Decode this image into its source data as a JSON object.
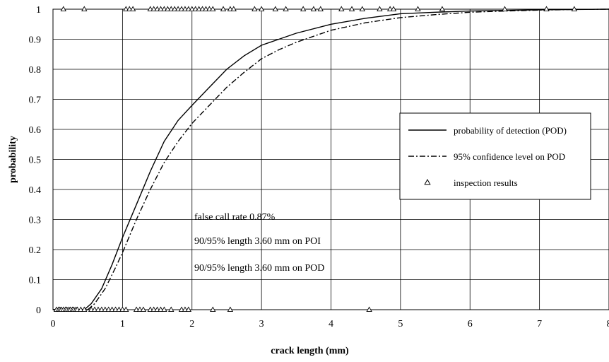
{
  "chart_data": {
    "type": "line",
    "title": "",
    "xlabel": "crack length (mm)",
    "ylabel": "probability",
    "xlim": [
      0,
      8
    ],
    "ylim": [
      0,
      1
    ],
    "x_ticks": [
      0,
      1,
      2,
      3,
      4,
      5,
      6,
      7,
      8
    ],
    "x_tick_labels": [
      "0",
      "1",
      "2",
      "3",
      "4",
      "5",
      "6",
      "7",
      "8"
    ],
    "y_ticks": [
      0,
      0.1,
      0.2,
      0.3,
      0.4,
      0.5,
      0.6,
      0.7,
      0.8,
      0.9,
      1
    ],
    "y_tick_labels": [
      "0",
      "0.1",
      "0.2",
      "0.3",
      "0.4",
      "0.5",
      "0.6",
      "0.7",
      "0.8",
      "0.9",
      "1"
    ],
    "grid": true,
    "legend_position": "right",
    "series": [
      {
        "name": "probability of detection (POD)",
        "style": "solid",
        "x": [
          0.45,
          0.55,
          0.7,
          0.85,
          1.0,
          1.2,
          1.4,
          1.6,
          1.8,
          2.0,
          2.25,
          2.5,
          2.75,
          3.0,
          3.25,
          3.5,
          4.0,
          4.5,
          5.0,
          5.5,
          6.0,
          6.5,
          7.0,
          7.5,
          8.0
        ],
        "y": [
          0.0,
          0.02,
          0.07,
          0.15,
          0.24,
          0.35,
          0.46,
          0.56,
          0.63,
          0.68,
          0.74,
          0.8,
          0.845,
          0.88,
          0.9,
          0.92,
          0.95,
          0.97,
          0.985,
          0.99,
          0.994,
          0.996,
          0.998,
          0.999,
          1.0
        ]
      },
      {
        "name": "95% confidence level on POD",
        "style": "dashdot",
        "x": [
          0.5,
          0.6,
          0.75,
          0.9,
          1.0,
          1.2,
          1.4,
          1.6,
          1.8,
          2.0,
          2.25,
          2.5,
          2.75,
          3.0,
          3.25,
          3.5,
          4.0,
          4.5,
          5.0,
          5.5,
          6.0,
          6.5,
          7.0,
          7.5,
          8.0
        ],
        "y": [
          0.0,
          0.02,
          0.07,
          0.14,
          0.19,
          0.3,
          0.4,
          0.49,
          0.56,
          0.62,
          0.68,
          0.74,
          0.79,
          0.835,
          0.865,
          0.89,
          0.93,
          0.955,
          0.972,
          0.982,
          0.99,
          0.994,
          0.997,
          0.999,
          1.0
        ]
      },
      {
        "name": "inspection results",
        "style": "triangle",
        "x": [
          0.05,
          0.08,
          0.1,
          0.12,
          0.15,
          0.18,
          0.2,
          0.23,
          0.25,
          0.28,
          0.3,
          0.33,
          0.35,
          0.4,
          0.45,
          0.55,
          0.6,
          0.65,
          0.7,
          0.75,
          0.8,
          0.85,
          0.9,
          0.95,
          1.0,
          1.05,
          1.2,
          1.25,
          1.3,
          1.4,
          1.45,
          1.5,
          1.55,
          1.6,
          1.7,
          1.85,
          1.9,
          1.95,
          2.3,
          2.55,
          4.55,
          0.15,
          0.45,
          1.05,
          1.1,
          1.15,
          1.4,
          1.45,
          1.5,
          1.55,
          1.6,
          1.65,
          1.7,
          1.75,
          1.8,
          1.85,
          1.9,
          1.95,
          2.0,
          2.05,
          2.1,
          2.15,
          2.2,
          2.25,
          2.3,
          2.45,
          2.55,
          2.6,
          2.9,
          3.0,
          3.2,
          3.35,
          3.6,
          3.75,
          3.85,
          4.15,
          4.3,
          4.45,
          4.7,
          4.85,
          4.9,
          5.25,
          5.6,
          6.5,
          7.1,
          7.5
        ],
        "y": [
          0,
          0,
          0,
          0,
          0,
          0,
          0,
          0,
          0,
          0,
          0,
          0,
          0,
          0,
          0,
          0,
          0,
          0,
          0,
          0,
          0,
          0,
          0,
          0,
          0,
          0,
          0,
          0,
          0,
          0,
          0,
          0,
          0,
          0,
          0,
          0,
          0,
          0,
          0,
          0,
          0,
          1,
          1,
          1,
          1,
          1,
          1,
          1,
          1,
          1,
          1,
          1,
          1,
          1,
          1,
          1,
          1,
          1,
          1,
          1,
          1,
          1,
          1,
          1,
          1,
          1,
          1,
          1,
          1,
          1,
          1,
          1,
          1,
          1,
          1,
          1,
          1,
          1,
          1,
          1,
          1,
          1,
          1,
          1,
          1,
          1
        ]
      }
    ],
    "annotations": [
      "false call rate 0.87%",
      "90/95% length 3.60 mm on POI",
      "90/95% length 3.60 mm on POD"
    ]
  }
}
